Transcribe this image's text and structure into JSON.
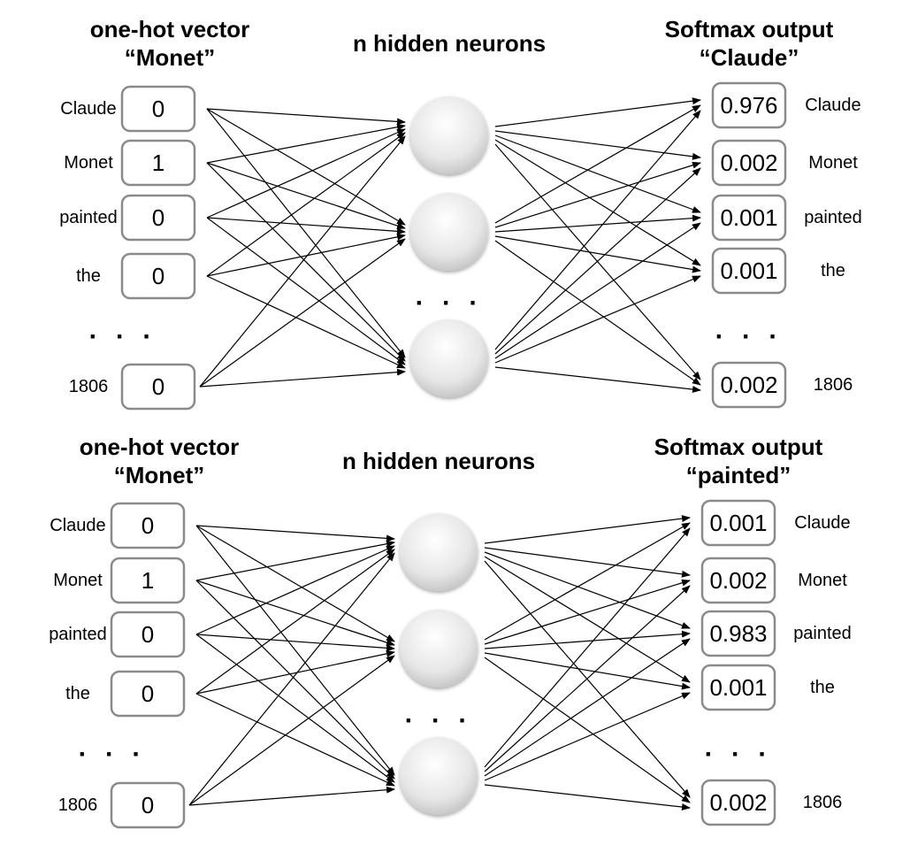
{
  "panels": [
    {
      "input_title": [
        "one-hot vector",
        "“Monet”"
      ],
      "hidden_title": "n hidden neurons",
      "output_title": [
        "Softmax output",
        "“Claude”"
      ],
      "input_words": [
        "Claude",
        "Monet",
        "painted",
        "the",
        "1806"
      ],
      "input_values": [
        "0",
        "1",
        "0",
        "0",
        "0"
      ],
      "output_words": [
        "Claude",
        "Monet",
        "painted",
        "the",
        "1806"
      ],
      "output_values": [
        "0.976",
        "0.002",
        "0.001",
        "0.001",
        "0.002"
      ],
      "ellipsis": "· · ·"
    },
    {
      "input_title": [
        "one-hot vector",
        "“Monet”"
      ],
      "hidden_title": "n hidden neurons",
      "output_title": [
        "Softmax output",
        "“painted”"
      ],
      "input_words": [
        "Claude",
        "Monet",
        "painted",
        "the",
        "1806"
      ],
      "input_values": [
        "0",
        "1",
        "0",
        "0",
        "0"
      ],
      "output_words": [
        "Claude",
        "Monet",
        "painted",
        "the",
        "1806"
      ],
      "output_values": [
        "0.001",
        "0.002",
        "0.983",
        "0.001",
        "0.002"
      ],
      "ellipsis": "· · ·"
    }
  ],
  "colors": {
    "box_border": "#8a8a8a",
    "arrow": "#000000",
    "neuron_light": "#ffffff",
    "neuron_dark": "#c8c8c8"
  }
}
